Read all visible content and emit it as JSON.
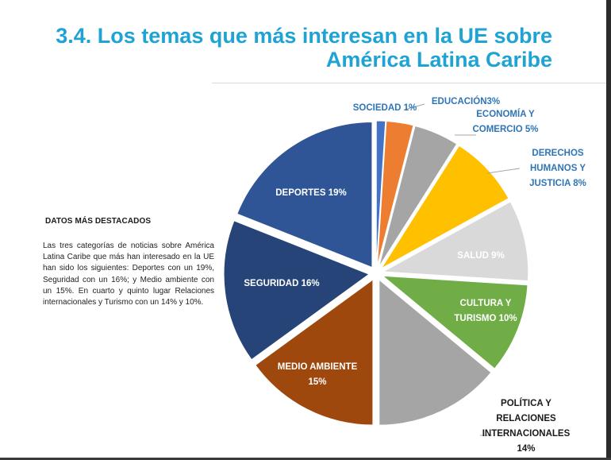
{
  "title": {
    "line1": "3.4. Los temas que más interesan en la UE sobre",
    "line2": "América Latina Caribe"
  },
  "sidebar": {
    "heading": "DATOS MÁS DESTACADOS",
    "text": "Las tres categorías de noticias sobre América Latina Caribe que más han interesado en la UE han sido los siguientes: Deportes con un 19%, Seguridad con un 16%; y Medio ambiente con un 15%. En cuarto y quinto lugar Relaciones internacionales y Turismo con un 14% y 10%."
  },
  "chart_data": {
    "type": "pie",
    "title": "3.4. Los temas que más interesan en la UE sobre América Latina Caribe",
    "exploded": true,
    "slices": [
      {
        "label_lines": [
          "SOCIEDAD 1%"
        ],
        "value": 1,
        "color": "#4472c4",
        "label_color": "#2e75b6",
        "inside": false
      },
      {
        "label_lines": [
          "EDUCACIÓN3%"
        ],
        "value": 3,
        "color": "#ed7d31",
        "label_color": "#2e75b6",
        "inside": false
      },
      {
        "label_lines": [
          "ECONOMÍA Y",
          "COMERCIO 5%"
        ],
        "value": 5,
        "color": "#a5a5a5",
        "label_color": "#2e75b6",
        "inside": false
      },
      {
        "label_lines": [
          "DERECHOS",
          "HUMANOS Y",
          "JUSTICIA  8%"
        ],
        "value": 8,
        "color": "#ffc000",
        "label_color": "#2e75b6",
        "inside": false
      },
      {
        "label_lines": [
          "SALUD 9%"
        ],
        "value": 9,
        "color": "#d9d9d9",
        "label_color": "#ffffff",
        "inside": true
      },
      {
        "label_lines": [
          "CULTURA Y",
          "TURISMO  10%"
        ],
        "value": 10,
        "color": "#70ad47",
        "label_color": "#ffffff",
        "inside": true
      },
      {
        "label_lines": [
          "POLÍTICA Y",
          "RELACIONES",
          "INTERNACIONALES",
          "14%"
        ],
        "value": 14,
        "color": "#a5a5a5",
        "label_color": "#1a1a1a",
        "inside": false
      },
      {
        "label_lines": [
          "MEDIO AMBIENTE",
          "15%"
        ],
        "value": 15,
        "color": "#9e480e",
        "label_color": "#ffffff",
        "inside": true
      },
      {
        "label_lines": [
          "SEGURIDAD 16%"
        ],
        "value": 16,
        "color": "#264478",
        "label_color": "#ffffff",
        "inside": true
      },
      {
        "label_lines": [
          "DEPORTES 19%"
        ],
        "value": 19,
        "color": "#2f5597",
        "label_color": "#ffffff",
        "inside": true
      }
    ]
  }
}
